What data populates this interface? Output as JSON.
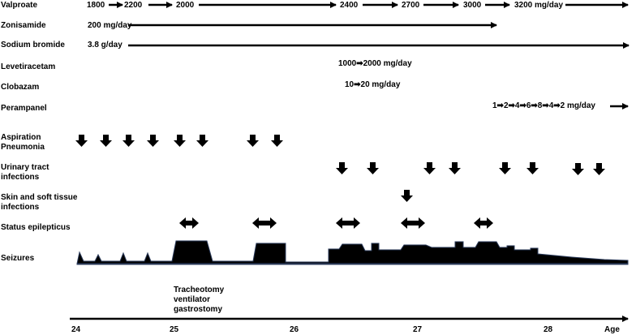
{
  "drugs": {
    "valproate": {
      "label": "Valproate",
      "doses": [
        "1800",
        "2200",
        "2000",
        "2400",
        "2700",
        "3000",
        "3200 mg/day"
      ]
    },
    "zonisamide": {
      "label": "Zonisamide",
      "dose": "200 mg/day"
    },
    "sodium_bromide": {
      "label": "Sodium bromide",
      "dose": "3.8 g/day"
    },
    "levetiracetam": {
      "label": "Levetiracetam",
      "dose": "1000➡2000 mg/day"
    },
    "clobazam": {
      "label": "Clobazam",
      "dose": "10➡20 mg/day"
    },
    "perampanel": {
      "label": "Perampanel",
      "dose": "1➡2➡4➡6➡8➡4➡2 mg/day"
    }
  },
  "events": {
    "aspiration_pneumonia": {
      "label": [
        "Aspiration",
        "Pneumonia"
      ],
      "count": 8
    },
    "urinary_tract_infections": {
      "label": [
        "Urinary tract",
        "infections"
      ],
      "count": 8
    },
    "skin_soft_tissue_infections": {
      "label": [
        "Skin and soft tissue",
        "infections"
      ],
      "count": 1
    },
    "status_epilepticus": {
      "label": "Status epilepticus",
      "count": 5
    },
    "seizures": {
      "label": "Seizures"
    }
  },
  "annotation": [
    "Tracheotomy",
    "ventilator",
    "gastrostomy"
  ],
  "axis": {
    "ticks": [
      "24",
      "25",
      "26",
      "27",
      "28"
    ],
    "label": "Age"
  }
}
